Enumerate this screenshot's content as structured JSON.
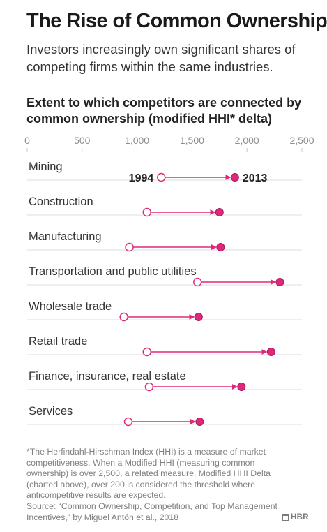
{
  "header": {
    "title": "The Rise of Common Ownership",
    "subtitle": "Investors increasingly own significant shares of competing firms within the same industries."
  },
  "chart_data": {
    "type": "dumbbell",
    "title": "Extent to which competitors are connected by common ownership (modified HHI* delta)",
    "xlim": [
      0,
      2500
    ],
    "xticks": [
      "0",
      "500",
      "1,000",
      "1,500",
      "2,000",
      "2,500"
    ],
    "xtick_values": [
      0,
      500,
      1000,
      1500,
      2000,
      2500
    ],
    "series": [
      {
        "name": "1994",
        "color": "#ffffff",
        "values": [
          1220,
          1090,
          930,
          1550,
          880,
          1090,
          1110,
          920
        ]
      },
      {
        "name": "2013",
        "color": "#e0287a",
        "values": [
          1890,
          1750,
          1760,
          2300,
          1560,
          2220,
          1950,
          1570
        ]
      }
    ],
    "categories": [
      "Mining",
      "Construction",
      "Manufacturing",
      "Transportation and public utilities",
      "Wholesale trade",
      "Retail trade",
      "Finance, insurance, real estate",
      "Services"
    ],
    "grid": false,
    "legend": "inline-first-row",
    "accent_color": "#e0287a"
  },
  "footer": {
    "footnote": "*The Herfindahl-Hirschman Index (HHI) is a measure of market competitiveness. When a Modified HHI (measuring common ownership) is over 2,500, a related measure, Modified HHI Delta (charted above), over 200 is considered the threshold where anticompetitive results are expected.",
    "source": "Source: “Common Ownership, Competition, and Top Management Incentives,” by Miguel Antón et al., 2018",
    "brand": "HBR"
  }
}
